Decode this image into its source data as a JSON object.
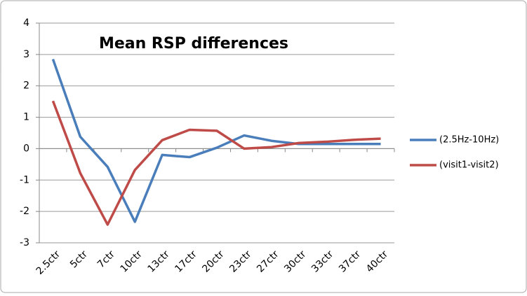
{
  "chart_data": {
    "type": "line",
    "title": "Mean RSP differences",
    "categories": [
      "2.5ctr",
      "5ctr",
      "7ctr",
      "10ctr",
      "13ctr",
      "17ctr",
      "20ctr",
      "23ctr",
      "27ctr",
      "30ctr",
      "33ctr",
      "37ctr",
      "40ctr"
    ],
    "series": [
      {
        "name": "(2.5Hz-10Hz)",
        "color": "#4a7ebb",
        "values": [
          2.85,
          0.38,
          -0.58,
          -2.33,
          -0.2,
          -0.27,
          0.03,
          0.42,
          0.25,
          0.15,
          0.15,
          0.15,
          0.15
        ]
      },
      {
        "name": "(visit1-visit2)",
        "color": "#be4b48",
        "values": [
          1.52,
          -0.78,
          -2.42,
          -0.68,
          0.27,
          0.6,
          0.57,
          0.0,
          0.05,
          0.18,
          0.22,
          0.28,
          0.32
        ]
      }
    ],
    "ylim": [
      -3,
      4
    ],
    "yticks": [
      -3,
      -2,
      -1,
      0,
      1,
      2,
      3,
      4
    ],
    "grid": true,
    "legend": "right"
  }
}
